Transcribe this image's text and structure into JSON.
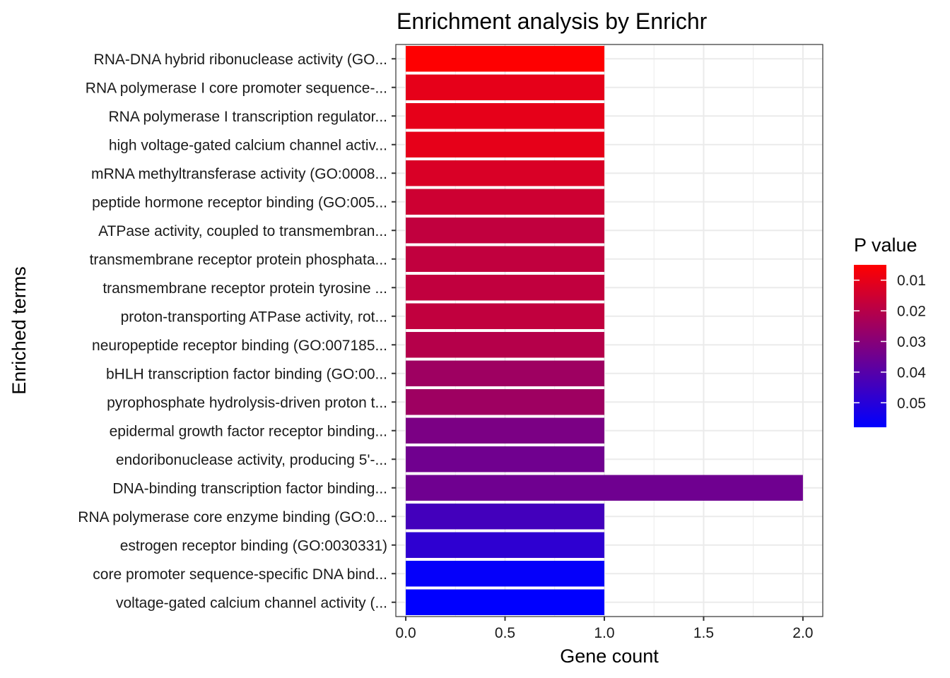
{
  "chart_data": {
    "type": "bar",
    "orientation": "horizontal",
    "title": "Enrichment analysis by Enrichr",
    "xlabel": "Gene count",
    "ylabel": "Enriched terms",
    "xlim": [
      -0.05,
      2.1
    ],
    "x_ticks": [
      0.0,
      0.5,
      1.0,
      1.5,
      2.0
    ],
    "x_tick_labels": [
      "0.0",
      "0.5",
      "1.0",
      "1.5",
      "2.0"
    ],
    "grid": true,
    "legend": {
      "title": "P value",
      "position": "right",
      "color_low": "#ff0000",
      "color_high": "#0000ff",
      "range": [
        0.005,
        0.058
      ],
      "ticks": [
        0.01,
        0.02,
        0.03,
        0.04,
        0.05
      ],
      "tick_labels": [
        "0.01",
        "0.02",
        "0.03",
        "0.04",
        "0.05"
      ]
    },
    "bars": [
      {
        "term": "RNA-DNA hybrid ribonuclease activity (GO...",
        "count": 1,
        "pvalue": 0.0052
      },
      {
        "term": "RNA polymerase I core promoter sequence-...",
        "count": 1,
        "pvalue": 0.0103
      },
      {
        "term": "RNA polymerase I transcription regulator...",
        "count": 1,
        "pvalue": 0.0103
      },
      {
        "term": "high voltage-gated calcium channel activ...",
        "count": 1,
        "pvalue": 0.0103
      },
      {
        "term": "mRNA methyltransferase activity (GO:0008...",
        "count": 1,
        "pvalue": 0.0128
      },
      {
        "term": "peptide hormone receptor binding (GO:005...",
        "count": 1,
        "pvalue": 0.0153
      },
      {
        "term": "ATPase activity, coupled to transmembran...",
        "count": 1,
        "pvalue": 0.0178
      },
      {
        "term": "transmembrane receptor protein phosphata...",
        "count": 1,
        "pvalue": 0.0178
      },
      {
        "term": "transmembrane receptor protein tyrosine ...",
        "count": 1,
        "pvalue": 0.0178
      },
      {
        "term": "proton-transporting ATPase activity, rot...",
        "count": 1,
        "pvalue": 0.0178
      },
      {
        "term": "neuropeptide receptor binding (GO:007185...",
        "count": 1,
        "pvalue": 0.0203
      },
      {
        "term": "bHLH transcription factor binding (GO:00...",
        "count": 1,
        "pvalue": 0.0252
      },
      {
        "term": "pyrophosphate hydrolysis-driven proton t...",
        "count": 1,
        "pvalue": 0.0252
      },
      {
        "term": "epidermal growth factor receptor binding...",
        "count": 1,
        "pvalue": 0.0324
      },
      {
        "term": "endoribonuclease activity, producing 5'-...",
        "count": 1,
        "pvalue": 0.0347
      },
      {
        "term": "DNA-binding transcription factor binding...",
        "count": 2,
        "pvalue": 0.035
      },
      {
        "term": "RNA polymerase core enzyme binding (GO:0...",
        "count": 1,
        "pvalue": 0.044
      },
      {
        "term": "estrogen receptor binding (GO:0030331)",
        "count": 1,
        "pvalue": 0.0485
      },
      {
        "term": "core promoter sequence-specific DNA bind...",
        "count": 1,
        "pvalue": 0.057
      },
      {
        "term": "voltage-gated calcium channel activity (...",
        "count": 1,
        "pvalue": 0.058
      }
    ]
  }
}
